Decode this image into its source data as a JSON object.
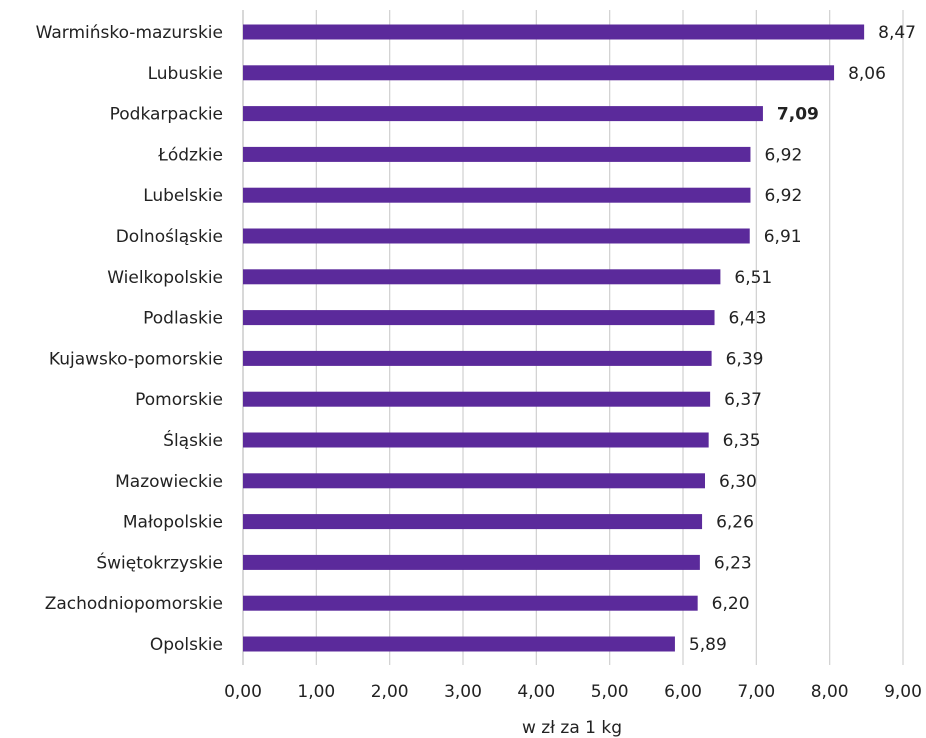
{
  "chart_data": {
    "type": "bar",
    "orientation": "horizontal",
    "categories": [
      "Warmińsko-mazurskie",
      "Lubuskie",
      "Podkarpackie",
      "Łódzkie",
      "Lubelskie",
      "Dolnośląskie",
      "Wielkopolskie",
      "Podlaskie",
      "Kujawsko-pomorskie",
      "Pomorskie",
      "Śląskie",
      "Mazowieckie",
      "Małopolskie",
      "Świętokrzyskie",
      "Zachodniopomorskie",
      "Opolskie"
    ],
    "values": [
      8.47,
      8.06,
      7.09,
      6.92,
      6.92,
      6.91,
      6.51,
      6.43,
      6.39,
      6.37,
      6.35,
      6.3,
      6.26,
      6.23,
      6.2,
      5.89
    ],
    "value_labels": [
      "8,47",
      "8,06",
      "7,09",
      "6,92",
      "6,92",
      "6,91",
      "6,51",
      "6,43",
      "6,39",
      "6,37",
      "6,35",
      "6,30",
      "6,26",
      "6,23",
      "6,20",
      "5,89"
    ],
    "highlight_category": "Podkarpackie",
    "xlim": [
      0,
      9
    ],
    "x_ticks": [
      0,
      1,
      2,
      3,
      4,
      5,
      6,
      7,
      8,
      9
    ],
    "x_tick_labels": [
      "0,00",
      "1,00",
      "2,00",
      "3,00",
      "4,00",
      "5,00",
      "6,00",
      "7,00",
      "8,00",
      "9,00"
    ],
    "xlabel": "w zł za 1 kg",
    "grid": "vertical",
    "legend": "none",
    "colors": {
      "bar": "#5b2a9b",
      "grid": "#d0d0d0",
      "axis": "#bdbdbd"
    }
  }
}
